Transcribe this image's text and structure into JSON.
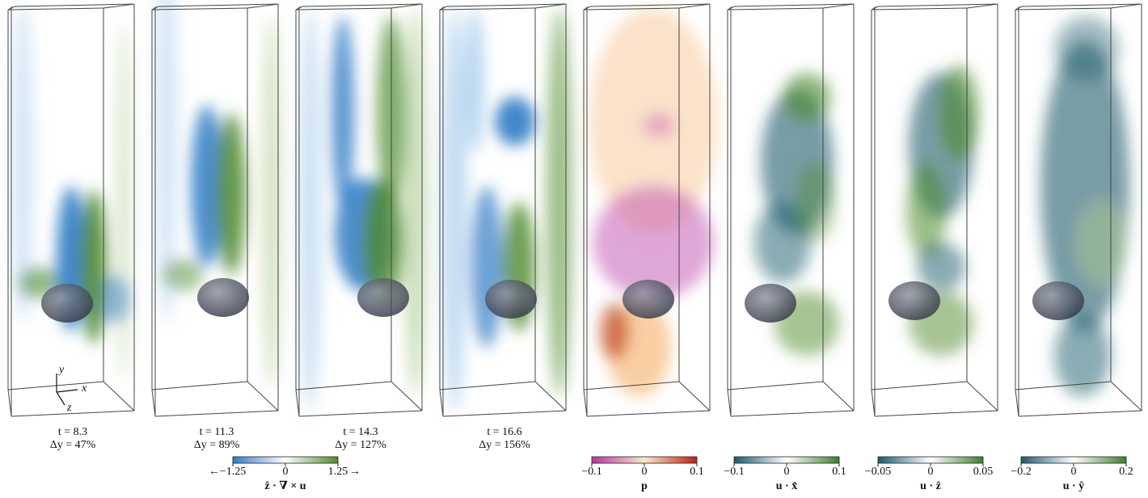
{
  "axes_labels": {
    "y": "y",
    "x": "x",
    "z": "z"
  },
  "panels": [
    {
      "time": "t = 8.3",
      "stretch": "Δy = 47%"
    },
    {
      "time": "t = 11.3",
      "stretch": "Δy = 89%"
    },
    {
      "time": "t = 14.3",
      "stretch": "Δy = 127%"
    },
    {
      "time": "t = 16.6",
      "stretch": "Δy = 156%"
    }
  ],
  "colorbars": [
    {
      "ticks": [
        "−1.25",
        "0",
        "1.25"
      ],
      "left_arrow": "←",
      "right_arrow": "→",
      "label": "ẑ · ∇ × u",
      "colors": [
        "#2f7bc4",
        "#ffffff",
        "#4d8a2c"
      ]
    },
    {
      "ticks": [
        "−0.1",
        "0",
        "0.1"
      ],
      "label": "p",
      "colors": [
        "#b0389a",
        "#fbe6d0",
        "#b8220f"
      ]
    },
    {
      "ticks": [
        "−0.1",
        "0",
        "0.1"
      ],
      "label": "u · x̂",
      "colors": [
        "#1c5a6a",
        "#ffffff",
        "#3f7f2a"
      ]
    },
    {
      "ticks": [
        "−0.05",
        "0",
        "0.05"
      ],
      "label": "u · ẑ",
      "colors": [
        "#1c5a6a",
        "#ffffff",
        "#3f7f2a"
      ]
    },
    {
      "ticks": [
        "−0.2",
        "0",
        "0.2"
      ],
      "label": "u · ŷ",
      "colors": [
        "#1c5a6a",
        "#ffffff",
        "#3f7f2a"
      ]
    }
  ]
}
